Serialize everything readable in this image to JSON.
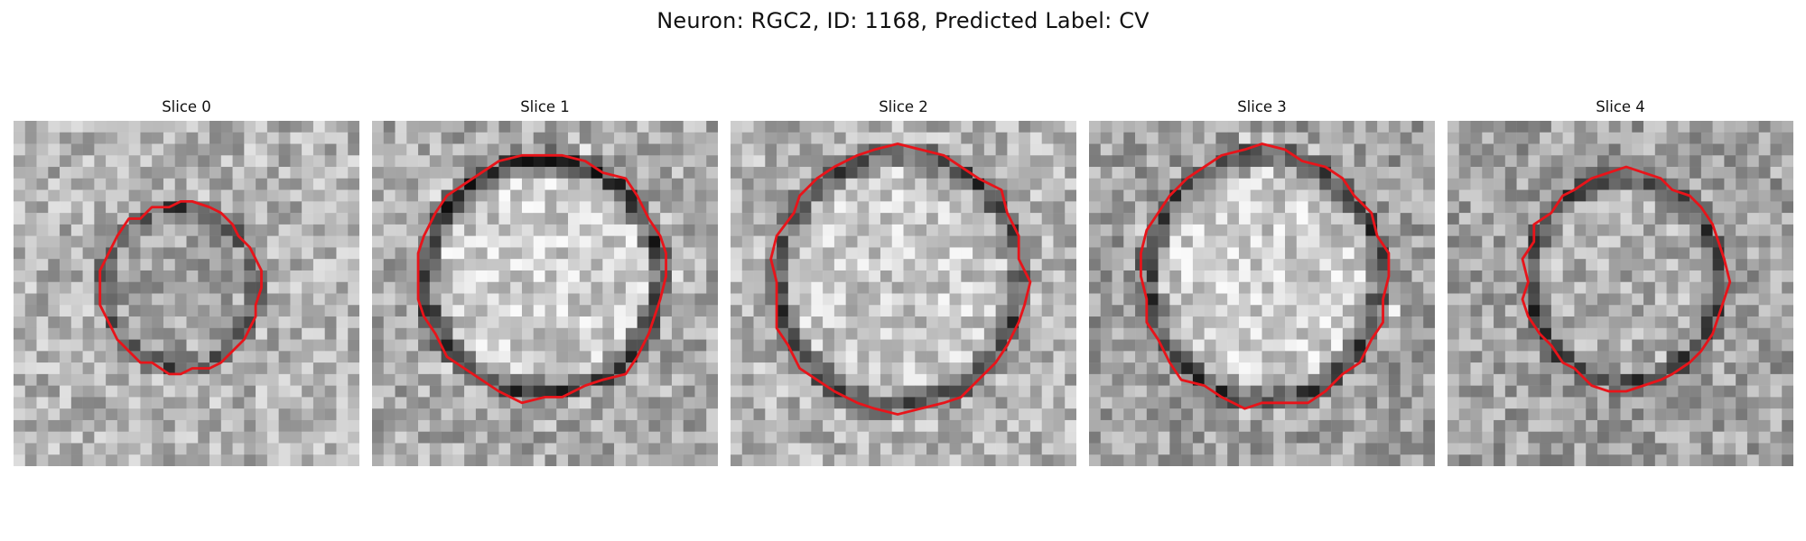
{
  "figure": {
    "title": "Neuron: RGC2, ID: 1168, Predicted Label: CV",
    "outline_color": "#e8141a"
  },
  "panels": [
    {
      "title": "Slice 0"
    },
    {
      "title": "Slice 1"
    },
    {
      "title": "Slice 2"
    },
    {
      "title": "Slice 3"
    },
    {
      "title": "Slice 4"
    }
  ]
}
